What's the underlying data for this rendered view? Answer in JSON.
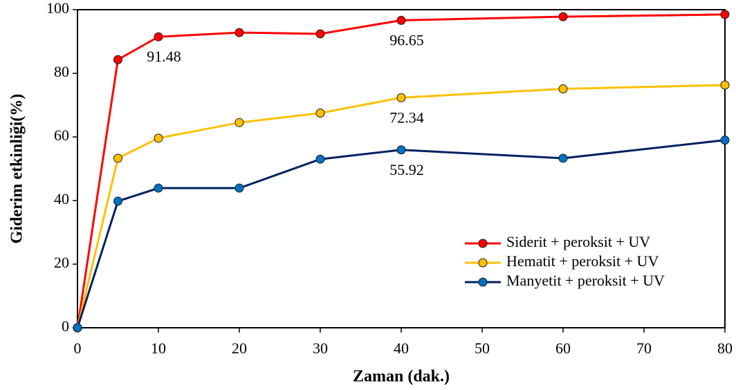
{
  "chart_data": {
    "type": "line",
    "xlabel": "Zaman (dak.)",
    "ylabel": "Giderim etkinliği(%)",
    "x": [
      0,
      5,
      10,
      20,
      30,
      40,
      60,
      80
    ],
    "series": [
      {
        "name": "Siderit + peroksit + UV",
        "color": "#ff0000",
        "marker_color": "#ff0000",
        "values": [
          0,
          84.3,
          91.48,
          92.8,
          92.4,
          96.65,
          97.8,
          98.5
        ],
        "value_labels": [
          null,
          null,
          "91.48",
          null,
          null,
          "96.65",
          null,
          null
        ]
      },
      {
        "name": "Hematit + peroksit + UV",
        "color": "#ffc000",
        "marker_color": "#ffc000",
        "values": [
          0,
          53.3,
          59.6,
          64.5,
          67.5,
          72.34,
          75.1,
          76.3
        ],
        "value_labels": [
          null,
          null,
          null,
          null,
          null,
          "72.34",
          null,
          null
        ]
      },
      {
        "name": "Manyetit + peroksit + UV",
        "color": "#002060",
        "marker_color": "#0070c0",
        "values": [
          0,
          39.8,
          43.9,
          43.9,
          53.0,
          55.92,
          53.3,
          59.0
        ],
        "value_labels": [
          null,
          null,
          null,
          null,
          null,
          "55.92",
          null,
          null
        ]
      }
    ],
    "xlim": [
      0,
      80
    ],
    "xticks": [
      0,
      10,
      20,
      30,
      40,
      50,
      60,
      70,
      80
    ],
    "ylim": [
      0,
      100
    ],
    "yticks": [
      0,
      20,
      40,
      60,
      80,
      100
    ],
    "grid": false,
    "legend": "lower right"
  }
}
